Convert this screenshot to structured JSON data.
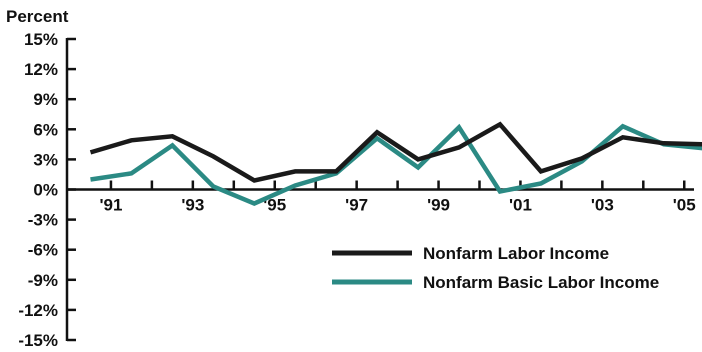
{
  "chart_data": {
    "type": "line",
    "ylabel": "Percent",
    "ylim": [
      -15,
      15
    ],
    "yticks": [
      15,
      12,
      9,
      6,
      3,
      0,
      -3,
      -6,
      -9,
      -12,
      -15
    ],
    "ytick_labels": [
      "15%",
      "12%",
      "9%",
      "6%",
      "3%",
      "0%",
      "-3%",
      "-6%",
      "-9%",
      "-12%",
      "-15%"
    ],
    "x": [
      1990.5,
      1991.5,
      1992.5,
      1993.5,
      1994.5,
      1995.5,
      1996.5,
      1997.5,
      1998.5,
      1999.5,
      2000.5,
      2001.5,
      2002.5,
      2003.5,
      2004.5,
      2005.5
    ],
    "xlim": [
      1990,
      2006
    ],
    "xtick_positions": [
      1991,
      1993,
      1995,
      1997,
      1999,
      2001,
      2003,
      2005
    ],
    "xtick_labels": [
      "'91",
      "'93",
      "'95",
      "'97",
      "'99",
      "'01",
      "'03",
      "'05"
    ],
    "grid": false,
    "legend_position": "lower-right",
    "series": [
      {
        "name": "Nonfarm Labor Income",
        "color": "#1a1a1a",
        "values": [
          3.7,
          4.9,
          5.3,
          3.3,
          0.9,
          1.8,
          1.8,
          5.7,
          3.0,
          4.2,
          6.5,
          1.8,
          3.1,
          5.2,
          4.6,
          4.5
        ]
      },
      {
        "name": "Nonfarm Basic Labor Income",
        "color": "#2b8a84",
        "values": [
          1.0,
          1.6,
          4.4,
          0.3,
          -1.4,
          0.4,
          1.6,
          5.1,
          2.2,
          6.2,
          -0.2,
          0.6,
          2.8,
          6.3,
          4.5,
          4.1
        ]
      }
    ]
  }
}
